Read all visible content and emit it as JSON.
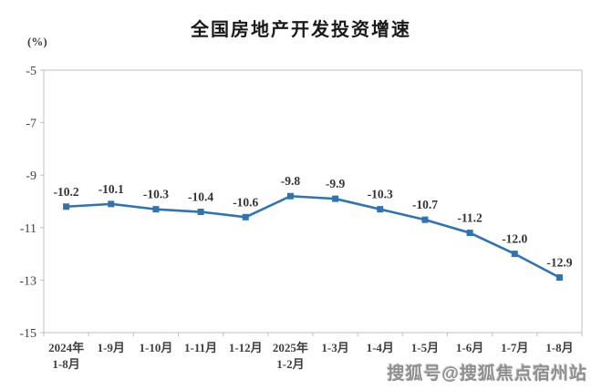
{
  "chart_data": {
    "type": "line",
    "title": "全国房地产开发投资增速",
    "ylabel": "(%)",
    "xlabel": "",
    "categories": [
      "2024年\n1-8月",
      "1-9月",
      "1-10月",
      "1-11月",
      "1-12月",
      "2025年\n1-2月",
      "1-3月",
      "1-4月",
      "1-5月",
      "1-6月",
      "1-7月",
      "1-8月"
    ],
    "values": [
      -10.2,
      -10.1,
      -10.3,
      -10.4,
      -10.6,
      -9.8,
      -9.9,
      -10.3,
      -10.7,
      -11.2,
      -12.0,
      -12.9
    ],
    "data_labels": [
      "-10.2",
      "-10.1",
      "-10.3",
      "-10.4",
      "-10.6",
      "-9.8",
      "-9.9",
      "-10.3",
      "-10.7",
      "-11.2",
      "-12.0",
      "-12.9"
    ],
    "yticks": [
      -5,
      -7,
      -9,
      -11,
      -13,
      -15
    ],
    "ylim": [
      -15,
      -5
    ],
    "grid": false,
    "legend": "none",
    "marker": "square",
    "line_color": "#2e74b5",
    "axis_color": "#bfbfbf",
    "text_color": "#3f3f3f"
  },
  "watermark": "搜狐号@搜狐焦点宿州站"
}
